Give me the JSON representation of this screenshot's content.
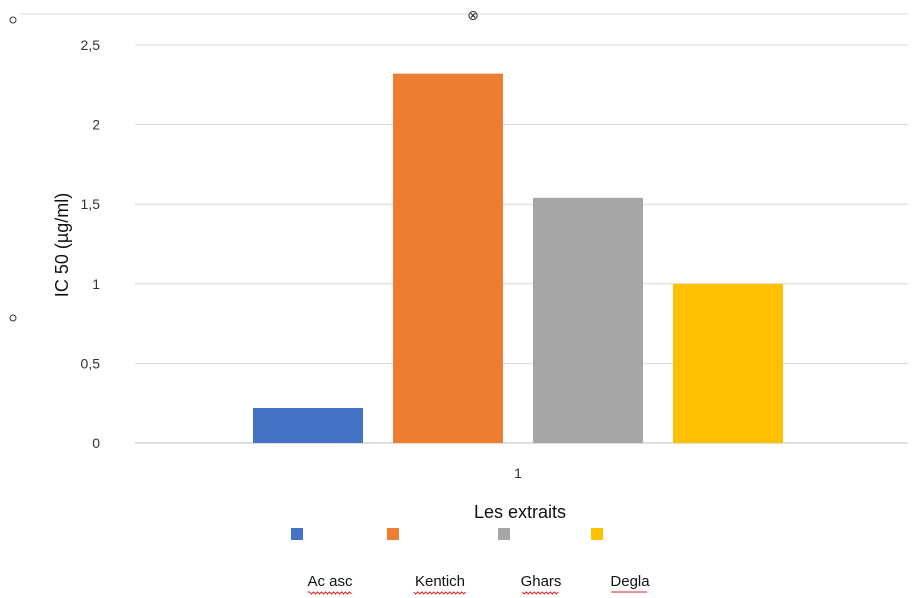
{
  "chart_data": {
    "type": "bar",
    "categories": [
      "1"
    ],
    "series": [
      {
        "name": "Ac asc",
        "values": [
          0.22
        ],
        "color": "#4472C4"
      },
      {
        "name": "Kentich",
        "values": [
          2.32
        ],
        "color": "#ED7D31"
      },
      {
        "name": "Ghars",
        "values": [
          1.54
        ],
        "color": "#A5A5A5"
      },
      {
        "name": "Degla",
        "values": [
          1.0
        ],
        "color": "#FFC000"
      }
    ],
    "title": "",
    "xlabel": "Les extraits",
    "ylabel": "IC 50 (µg/ml)",
    "ylim": [
      0,
      2.5
    ],
    "yticks": [
      "0",
      "0,5",
      "1",
      "1,5",
      "2",
      "2,5"
    ],
    "grid": true,
    "legend_position": "bottom"
  },
  "marks": {
    "top_handle": "⊗"
  }
}
